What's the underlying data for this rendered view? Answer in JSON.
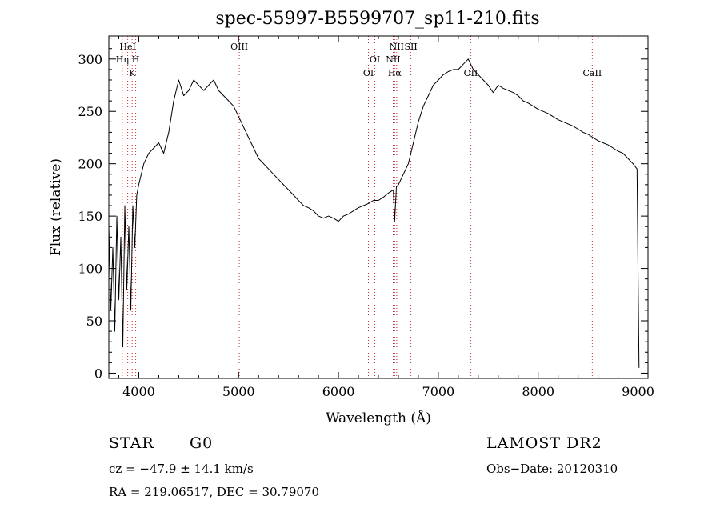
{
  "chart_data": {
    "type": "line",
    "title": "spec-55997-B5599707_sp11-210.fits",
    "xlabel": "Wavelength (Å)",
    "ylabel": "Flux (relative)",
    "xlim": [
      3700,
      9100
    ],
    "ylim": [
      -5,
      322
    ],
    "xticks": [
      4000,
      5000,
      6000,
      7000,
      8000,
      9000
    ],
    "yticks": [
      0,
      50,
      100,
      150,
      200,
      250,
      300
    ],
    "grid": false,
    "line_color": "#000000",
    "line_marker_color": "#cc3333",
    "lines": [
      {
        "label": "HeI",
        "wavelength": 3889,
        "row": 0
      },
      {
        "label": "Hη",
        "wavelength": 3835,
        "row": 1
      },
      {
        "label": "H",
        "wavelength": 3969,
        "row": 1
      },
      {
        "label": "K",
        "wavelength": 3934,
        "row": 2
      },
      {
        "label": "OIII",
        "wavelength": 5007,
        "row": 0
      },
      {
        "label": "OI",
        "wavelength": 6364,
        "row": 1
      },
      {
        "label": "OI",
        "wavelength": 6300,
        "row": 2
      },
      {
        "label": "NII",
        "wavelength": 6583,
        "row": 0
      },
      {
        "label": "SII",
        "wavelength": 6725,
        "row": 0
      },
      {
        "label": "NII",
        "wavelength": 6548,
        "row": 1
      },
      {
        "label": "Hα",
        "wavelength": 6563,
        "row": 2
      },
      {
        "label": "OII",
        "wavelength": 7325,
        "row": 2
      },
      {
        "label": "CaII",
        "wavelength": 8542,
        "row": 2
      }
    ],
    "series": [
      {
        "x": [
          3700,
          3720,
          3740,
          3760,
          3780,
          3800,
          3820,
          3840,
          3860,
          3880,
          3900,
          3920,
          3940,
          3960,
          3980,
          4000,
          4050,
          4100,
          4150,
          4200,
          4250,
          4300,
          4350,
          4400,
          4450,
          4500,
          4550,
          4600,
          4650,
          4700,
          4750,
          4800,
          4850,
          4900,
          4950,
          5000,
          5050,
          5100,
          5150,
          5200,
          5250,
          5300,
          5350,
          5400,
          5450,
          5500,
          5550,
          5600,
          5650,
          5700,
          5750,
          5800,
          5850,
          5900,
          5950,
          6000,
          6050,
          6100,
          6150,
          6200,
          6250,
          6300,
          6350,
          6400,
          6450,
          6500,
          6550,
          6563,
          6580,
          6600,
          6650,
          6700,
          6750,
          6800,
          6850,
          6900,
          6950,
          7000,
          7050,
          7100,
          7150,
          7200,
          7250,
          7300,
          7350,
          7400,
          7450,
          7500,
          7550,
          7600,
          7650,
          7700,
          7750,
          7800,
          7850,
          7900,
          7950,
          8000,
          8050,
          8100,
          8150,
          8200,
          8250,
          8300,
          8350,
          8400,
          8450,
          8500,
          8550,
          8600,
          8650,
          8700,
          8750,
          8800,
          8850,
          8900,
          8950,
          8990,
          9000,
          9010
        ],
        "y": [
          140,
          60,
          120,
          40,
          150,
          70,
          130,
          25,
          160,
          80,
          140,
          60,
          160,
          120,
          170,
          180,
          200,
          210,
          215,
          220,
          210,
          230,
          260,
          280,
          265,
          270,
          280,
          275,
          270,
          275,
          280,
          270,
          265,
          260,
          255,
          245,
          235,
          225,
          215,
          205,
          200,
          195,
          190,
          185,
          180,
          175,
          170,
          165,
          160,
          158,
          155,
          150,
          148,
          150,
          148,
          145,
          150,
          152,
          155,
          158,
          160,
          162,
          165,
          165,
          168,
          172,
          175,
          145,
          178,
          180,
          190,
          200,
          220,
          240,
          255,
          265,
          275,
          280,
          285,
          288,
          290,
          290,
          295,
          300,
          290,
          285,
          280,
          275,
          268,
          275,
          272,
          270,
          268,
          265,
          260,
          258,
          255,
          252,
          250,
          248,
          245,
          242,
          240,
          238,
          236,
          233,
          230,
          228,
          225,
          222,
          220,
          218,
          215,
          212,
          210,
          205,
          200,
          195,
          100,
          5
        ]
      }
    ]
  },
  "info": {
    "class_label": "STAR",
    "subclass_label": "G0",
    "survey_label": "LAMOST DR2",
    "cz_text": "cz = −47.9 ± 14.1 km/s",
    "obs_date_text": "Obs−Date: 20120310",
    "coords_text": "RA = 219.06517, DEC =  30.79070"
  }
}
